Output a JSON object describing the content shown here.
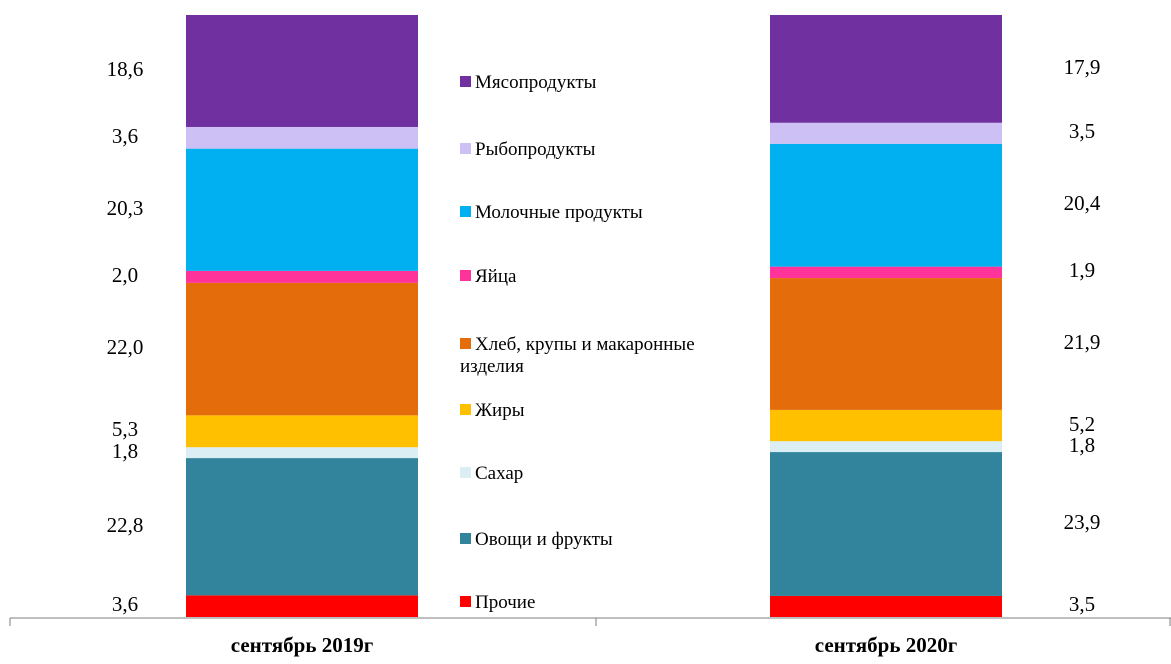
{
  "chart_data": {
    "type": "bar",
    "stacked": true,
    "normalized_percent": true,
    "categories": [
      "сентябрь 2019г",
      "сентябрь 2020г"
    ],
    "series": [
      {
        "name": "Прочие",
        "color": "#FF0000",
        "values": [
          3.6,
          3.5
        ]
      },
      {
        "name": "Овощи и фрукты",
        "color": "#31849B",
        "values": [
          22.8,
          23.9
        ]
      },
      {
        "name": "Сахар",
        "color": "#DAEEF3",
        "values": [
          1.8,
          1.8
        ]
      },
      {
        "name": "Жиры",
        "color": "#FFC000",
        "values": [
          5.3,
          5.2
        ]
      },
      {
        "name": "Хлеб, крупы и макаронные изделия",
        "color": "#E46C0A",
        "values": [
          22.0,
          21.9
        ]
      },
      {
        "name": "Яйца",
        "color": "#FF3399",
        "values": [
          2.0,
          1.9
        ]
      },
      {
        "name": "Молочные продукты",
        "color": "#00B0F0",
        "values": [
          20.3,
          20.4
        ]
      },
      {
        "name": "Рыбопродукты",
        "color": "#CCC0F5",
        "values": [
          3.6,
          3.5
        ]
      },
      {
        "name": "Мясопродукты",
        "color": "#7030A0",
        "values": [
          18.6,
          17.9
        ]
      }
    ],
    "data_labels": [
      [
        "3,6",
        "22,8",
        "1,8",
        "5,3",
        "22,0",
        "2,0",
        "20,3",
        "3,6",
        "18,6"
      ],
      [
        "3,5",
        "23,9",
        "1,8",
        "5,2",
        "21,9",
        "1,9",
        "20,4",
        "3,5",
        "17,9"
      ]
    ],
    "legend_order": [
      "Мясопродукты",
      "Рыбопродукты",
      "Молочные продукты",
      "Яйца",
      "Хлеб, крупы и макаронные изделия",
      "Жиры",
      "Сахар",
      "Овощи и фрукты",
      "Прочие"
    ],
    "legend_position": "center"
  }
}
